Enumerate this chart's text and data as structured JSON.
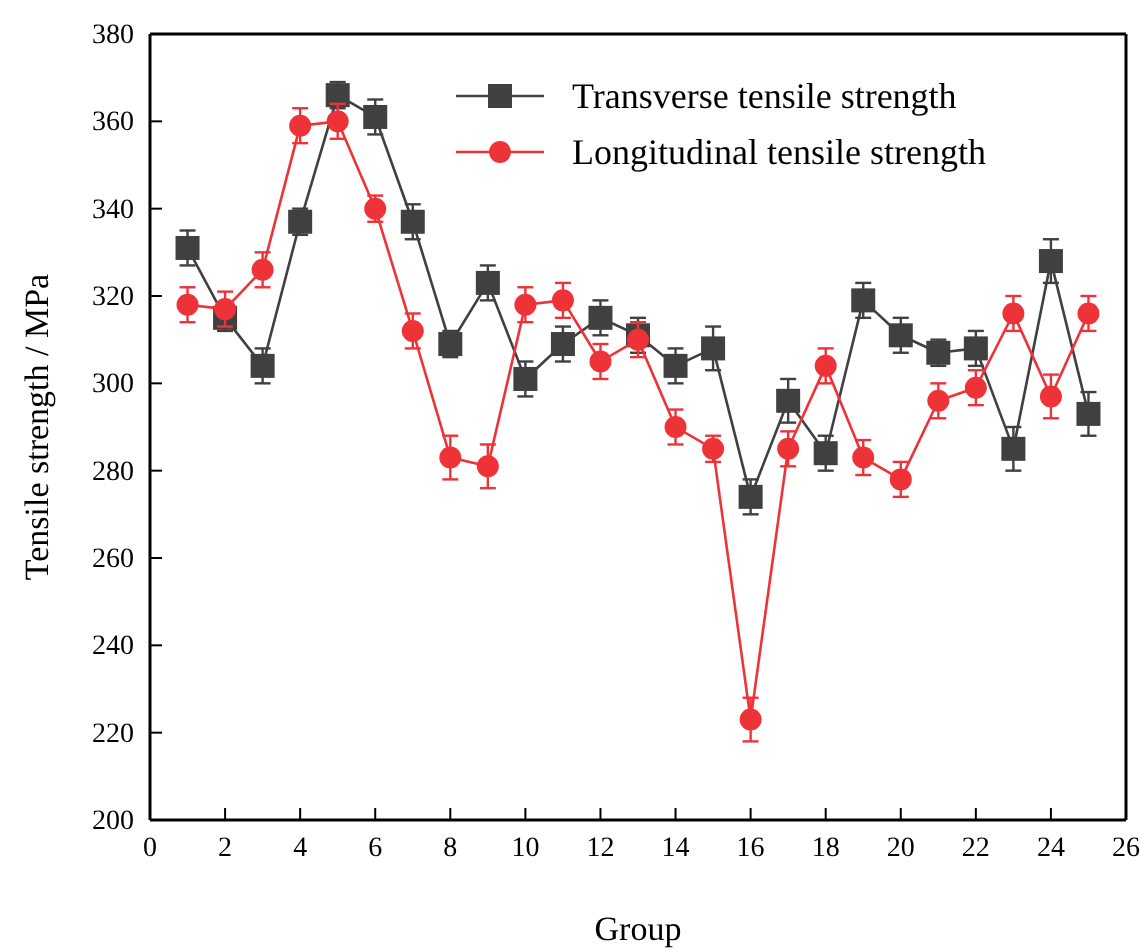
{
  "chart_data": {
    "type": "line",
    "xlabel": "Group",
    "ylabel": "Tensile strength / MPa",
    "x": [
      1,
      2,
      3,
      4,
      5,
      6,
      7,
      8,
      9,
      10,
      11,
      12,
      13,
      14,
      15,
      16,
      17,
      18,
      19,
      20,
      21,
      22,
      23,
      24,
      25
    ],
    "xlim": [
      0,
      26
    ],
    "xticks": [
      0,
      2,
      4,
      6,
      8,
      10,
      12,
      14,
      16,
      18,
      20,
      22,
      24,
      26
    ],
    "ylim": [
      200,
      380
    ],
    "yticks": [
      200,
      220,
      240,
      260,
      280,
      300,
      320,
      340,
      360,
      380
    ],
    "legend": "top right",
    "grid": false,
    "series": [
      {
        "name": "Transverse tensile strength",
        "color": "#404040",
        "marker": "square",
        "values": [
          331,
          315,
          304,
          337,
          366,
          361,
          337,
          309,
          323,
          301,
          309,
          315,
          311,
          304,
          308,
          274,
          296,
          284,
          319,
          311,
          307,
          308,
          285,
          328,
          293
        ],
        "errors": [
          4,
          3,
          4,
          3,
          3,
          4,
          4,
          3,
          4,
          4,
          4,
          4,
          4,
          4,
          5,
          4,
          5,
          4,
          4,
          4,
          3,
          4,
          5,
          5,
          5
        ]
      },
      {
        "name": "Longitudinal tensile strength",
        "color": "#ee3338",
        "marker": "circle",
        "values": [
          318,
          317,
          326,
          359,
          360,
          340,
          312,
          283,
          281,
          318,
          319,
          305,
          310,
          290,
          285,
          223,
          285,
          304,
          283,
          278,
          296,
          299,
          316,
          297,
          316
        ],
        "errors": [
          4,
          4,
          4,
          4,
          4,
          3,
          4,
          5,
          5,
          4,
          4,
          4,
          4,
          4,
          3,
          5,
          4,
          4,
          4,
          4,
          4,
          4,
          4,
          5,
          4
        ]
      }
    ]
  }
}
